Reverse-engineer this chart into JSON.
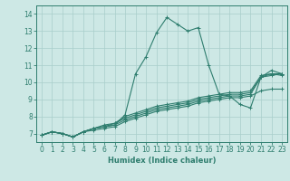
{
  "title": "",
  "xlabel": "Humidex (Indice chaleur)",
  "ylabel": "",
  "xlim": [
    -0.5,
    23.5
  ],
  "ylim": [
    6.5,
    14.5
  ],
  "xticks": [
    0,
    1,
    2,
    3,
    4,
    5,
    6,
    7,
    8,
    9,
    10,
    11,
    12,
    13,
    14,
    15,
    16,
    17,
    18,
    19,
    20,
    21,
    22,
    23
  ],
  "yticks": [
    7,
    8,
    9,
    10,
    11,
    12,
    13,
    14
  ],
  "bg_color": "#cde8e5",
  "grid_color": "#a8ceca",
  "line_color": "#2e7d6e",
  "lines": [
    {
      "x": [
        0,
        1,
        2,
        3,
        4,
        5,
        6,
        7,
        8,
        9,
        10,
        11,
        12,
        13,
        14,
        15,
        16,
        17,
        18,
        19,
        20,
        21,
        22,
        23
      ],
      "y": [
        6.9,
        7.1,
        7.0,
        6.8,
        7.1,
        7.3,
        7.4,
        7.5,
        8.1,
        10.5,
        11.5,
        12.9,
        13.8,
        13.4,
        13.0,
        13.2,
        11.0,
        9.3,
        9.2,
        8.7,
        8.5,
        10.3,
        10.7,
        10.5
      ]
    },
    {
      "x": [
        0,
        1,
        2,
        3,
        4,
        5,
        6,
        7,
        8,
        9,
        10,
        11,
        12,
        13,
        14,
        15,
        16,
        17,
        18,
        19,
        20,
        21,
        22,
        23
      ],
      "y": [
        6.9,
        7.1,
        7.0,
        6.8,
        7.1,
        7.3,
        7.5,
        7.6,
        8.0,
        8.2,
        8.4,
        8.6,
        8.7,
        8.8,
        8.9,
        9.1,
        9.2,
        9.3,
        9.4,
        9.4,
        9.5,
        10.4,
        10.5,
        10.4
      ]
    },
    {
      "x": [
        0,
        1,
        2,
        3,
        4,
        5,
        6,
        7,
        8,
        9,
        10,
        11,
        12,
        13,
        14,
        15,
        16,
        17,
        18,
        19,
        20,
        21,
        22,
        23
      ],
      "y": [
        6.9,
        7.1,
        7.0,
        6.8,
        7.1,
        7.3,
        7.4,
        7.6,
        7.9,
        8.1,
        8.3,
        8.5,
        8.6,
        8.7,
        8.8,
        9.0,
        9.1,
        9.2,
        9.3,
        9.3,
        9.4,
        10.3,
        10.5,
        10.5
      ]
    },
    {
      "x": [
        0,
        1,
        2,
        3,
        4,
        5,
        6,
        7,
        8,
        9,
        10,
        11,
        12,
        13,
        14,
        15,
        16,
        17,
        18,
        19,
        20,
        21,
        22,
        23
      ],
      "y": [
        6.9,
        7.1,
        7.0,
        6.8,
        7.1,
        7.3,
        7.4,
        7.5,
        7.8,
        8.0,
        8.2,
        8.4,
        8.5,
        8.6,
        8.7,
        8.9,
        9.0,
        9.1,
        9.2,
        9.2,
        9.3,
        10.3,
        10.4,
        10.5
      ]
    },
    {
      "x": [
        0,
        1,
        2,
        3,
        4,
        5,
        6,
        7,
        8,
        9,
        10,
        11,
        12,
        13,
        14,
        15,
        16,
        17,
        18,
        19,
        20,
        21,
        22,
        23
      ],
      "y": [
        6.9,
        7.1,
        7.0,
        6.8,
        7.1,
        7.2,
        7.3,
        7.4,
        7.7,
        7.9,
        8.1,
        8.3,
        8.4,
        8.5,
        8.6,
        8.8,
        8.9,
        9.0,
        9.1,
        9.1,
        9.2,
        9.5,
        9.6,
        9.6
      ]
    }
  ]
}
